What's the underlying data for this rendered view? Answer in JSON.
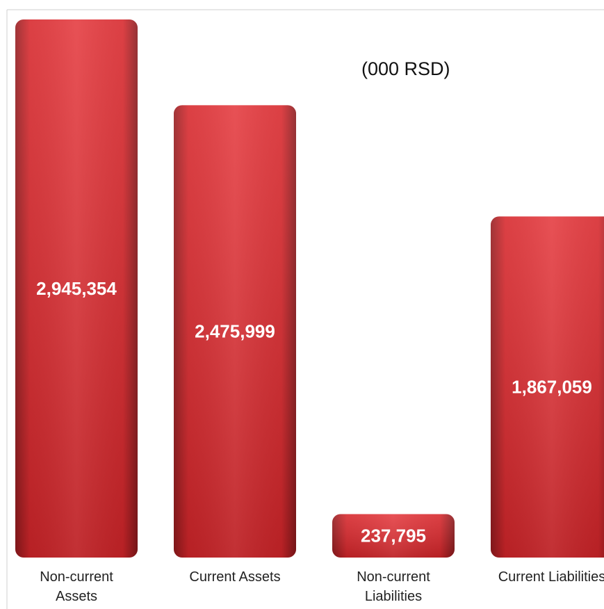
{
  "chart_data": {
    "type": "bar",
    "subtitle": "(000 RSD)",
    "categories": [
      "Non-current Assets",
      "Current Assets",
      "Non-current Liabilities",
      "Current Liabilities"
    ],
    "values": [
      2945354,
      2475999,
      237795,
      1867059
    ],
    "value_labels": [
      "2,945,354",
      "2,475,999",
      "237,795",
      "1,867,059"
    ],
    "color": "#e2282d"
  }
}
